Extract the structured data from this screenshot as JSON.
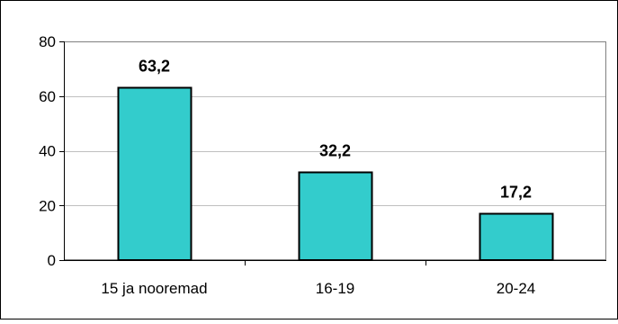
{
  "chart_data": {
    "type": "bar",
    "categories": [
      "15 ja nooremad",
      "16-19",
      "20-24"
    ],
    "values": [
      63.2,
      32.2,
      17.2
    ],
    "data_labels": [
      "63,2",
      "32,2",
      "17,2"
    ],
    "title": "",
    "xlabel": "",
    "ylabel": "",
    "ylim": [
      0,
      80
    ],
    "yticks": [
      0,
      20,
      40,
      60,
      80
    ],
    "grid": true,
    "legend": "none",
    "colors": {
      "bar_fill": "#33CCCC",
      "bar_stroke": "#000000",
      "gridline": "#C0C0C0",
      "axis": "#000000",
      "plot_border": "#808080",
      "frame": "#000000"
    }
  }
}
